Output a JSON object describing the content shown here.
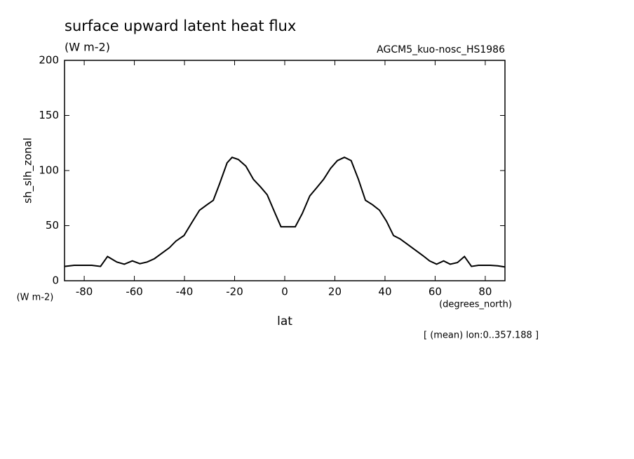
{
  "chart_data": {
    "type": "line",
    "title": "surface upward latent heat flux",
    "subtitle": "(W m-2)",
    "experiment": "AGCM5_kuo-nosc_HS1986",
    "y_label": "sh_slh_zonal",
    "y_unit": "(W m-2)",
    "x_label": "lat",
    "x_unit": "(degrees_north)",
    "note": "[ (mean) lon:0..357.188 ]",
    "x": [
      -87.86,
      -84,
      -77,
      -73.5,
      -70.7,
      -67,
      -64,
      -60.8,
      -57.8,
      -54.9,
      -52,
      -46,
      -43.4,
      -40.2,
      -37,
      -34,
      -31,
      -28.5,
      -26,
      -23,
      -21,
      -18.5,
      -15.5,
      -12.5,
      -9.6,
      -7,
      -4,
      -1.5,
      1.4,
      4.2,
      7,
      10,
      12.6,
      15.5,
      18.3,
      21,
      23.8,
      26.5,
      29.4,
      32.2,
      35,
      37.8,
      40.6,
      43.4,
      46,
      49,
      52,
      55,
      57.8,
      60.6,
      63.4,
      66,
      68.9,
      71.7,
      74.5,
      77.3,
      82,
      85,
      87.86
    ],
    "series": [
      {
        "name": "sh_slh_zonal",
        "color": "#000000",
        "values": [
          13,
          14,
          14,
          13,
          22,
          17,
          15,
          18,
          15.5,
          17,
          20,
          30,
          36,
          41,
          53,
          64,
          69,
          73,
          88,
          107,
          112,
          110,
          104,
          92,
          85,
          78,
          62,
          49,
          49,
          49,
          61,
          77,
          84,
          92,
          102,
          109,
          112,
          109,
          92,
          73,
          69,
          64,
          54,
          41,
          38,
          33,
          28,
          23,
          18,
          15,
          18,
          15,
          16.5,
          22,
          13,
          14,
          14,
          13.5,
          12.5
        ]
      }
    ],
    "xlim": [
      -87.86,
      87.86
    ],
    "ylim": [
      0,
      200
    ],
    "xticks": [
      -80,
      -60,
      -40,
      -20,
      0,
      20,
      40,
      60,
      80
    ],
    "yticks": [
      0,
      50,
      100,
      150,
      200
    ]
  }
}
